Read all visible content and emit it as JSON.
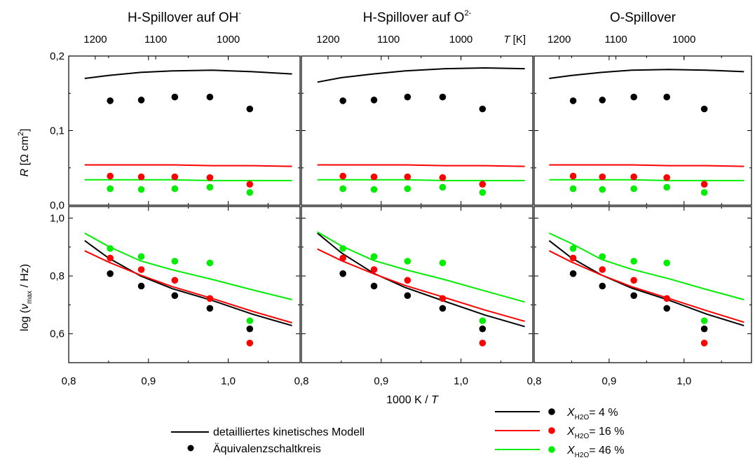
{
  "chart_data": [
    {
      "panel": "H-Spillover auf OH-",
      "title": "H-Spillover auf OH",
      "title_sup": "-",
      "type": "scatter",
      "top_axis": {
        "label_italic": "T",
        "label_unit": " [K]",
        "ticks": [
          1200,
          1100,
          1000
        ]
      },
      "x": {
        "label": "1000 K / T",
        "range": [
          0.8,
          1.09
        ],
        "ticks": [
          "0,8",
          "0,9",
          "1,0"
        ]
      },
      "R": {
        "ylabel": "R [Ω cm²]",
        "range": [
          0,
          0.2
        ],
        "ticks": [
          "0,0",
          "0,1",
          "0,2"
        ],
        "model_x": [
          0.82,
          0.85,
          0.89,
          0.93,
          0.98,
          1.03,
          1.08
        ],
        "model": {
          "4": [
            0.17,
            0.174,
            0.178,
            0.18,
            0.181,
            0.179,
            0.176
          ],
          "16": [
            0.054,
            0.054,
            0.054,
            0.054,
            0.053,
            0.053,
            0.052
          ],
          "46": [
            0.034,
            0.034,
            0.034,
            0.034,
            0.033,
            0.033,
            0.033
          ]
        },
        "points_x": [
          0.852,
          0.891,
          0.933,
          0.977,
          1.027
        ],
        "points": {
          "4": [
            0.14,
            0.141,
            0.145,
            0.145,
            0.129
          ],
          "16": [
            0.039,
            0.038,
            0.038,
            0.037,
            0.028
          ],
          "46": [
            0.022,
            0.021,
            0.022,
            0.024,
            0.017
          ]
        }
      },
      "nu": {
        "ylabel": "log (ν max / Hz)",
        "range": [
          0.5,
          1.04
        ],
        "ticks": [
          "0,6",
          "0,8",
          "1,0"
        ],
        "model_x": [
          0.82,
          0.85,
          0.89,
          0.93,
          0.98,
          1.03,
          1.08
        ],
        "model": {
          "4": [
            0.922,
            0.862,
            0.8,
            0.756,
            0.715,
            0.668,
            0.628
          ],
          "16": [
            0.887,
            0.848,
            0.803,
            0.763,
            0.722,
            0.678,
            0.638
          ],
          "46": [
            0.948,
            0.902,
            0.852,
            0.821,
            0.788,
            0.752,
            0.718
          ]
        },
        "points_x": [
          0.852,
          0.891,
          0.933,
          0.977,
          1.027
        ],
        "points": {
          "4": [
            0.808,
            0.765,
            0.732,
            0.688,
            0.617
          ],
          "16": [
            0.862,
            0.822,
            0.785,
            0.722,
            0.568
          ],
          "46": [
            0.895,
            0.867,
            0.851,
            0.845,
            0.645
          ]
        }
      }
    },
    {
      "panel": "H-Spillover auf O2-",
      "title": "H-Spillover auf O",
      "title_sup": "2-",
      "type": "scatter",
      "top_axis": {
        "label_italic": "T",
        "label_unit": " [K]",
        "ticks": [
          1200,
          1100,
          1000
        ]
      },
      "x": {
        "label": "1000 K / T",
        "range": [
          0.8,
          1.09
        ],
        "ticks": [
          "0,8",
          "0,9",
          "1,0"
        ]
      },
      "R": {
        "range": [
          0,
          0.2
        ],
        "model_x": [
          0.82,
          0.85,
          0.89,
          0.93,
          0.98,
          1.03,
          1.08
        ],
        "model": {
          "4": [
            0.165,
            0.171,
            0.176,
            0.18,
            0.183,
            0.184,
            0.183
          ],
          "16": [
            0.054,
            0.054,
            0.054,
            0.054,
            0.053,
            0.053,
            0.052
          ],
          "46": [
            0.034,
            0.034,
            0.034,
            0.034,
            0.033,
            0.033,
            0.033
          ]
        },
        "points_x": [
          0.852,
          0.891,
          0.933,
          0.977,
          1.027
        ],
        "points": {
          "4": [
            0.14,
            0.141,
            0.145,
            0.145,
            0.129
          ],
          "16": [
            0.039,
            0.038,
            0.038,
            0.037,
            0.028
          ],
          "46": [
            0.022,
            0.021,
            0.022,
            0.024,
            0.017
          ]
        }
      },
      "nu": {
        "range": [
          0.5,
          1.04
        ],
        "model_x": [
          0.82,
          0.85,
          0.89,
          0.93,
          0.98,
          1.03,
          1.08
        ],
        "model": {
          "4": [
            0.948,
            0.88,
            0.81,
            0.76,
            0.712,
            0.665,
            0.625
          ],
          "16": [
            0.893,
            0.853,
            0.808,
            0.767,
            0.725,
            0.682,
            0.643
          ],
          "46": [
            0.952,
            0.904,
            0.854,
            0.822,
            0.787,
            0.748,
            0.71
          ]
        },
        "points_x": [
          0.852,
          0.891,
          0.933,
          0.977,
          1.027
        ],
        "points": {
          "4": [
            0.808,
            0.765,
            0.732,
            0.688,
            0.617
          ],
          "16": [
            0.862,
            0.822,
            0.785,
            0.722,
            0.568
          ],
          "46": [
            0.895,
            0.867,
            0.851,
            0.845,
            0.645
          ]
        }
      }
    },
    {
      "panel": "O-Spillover",
      "title": "O-Spillover",
      "title_sup": "",
      "type": "scatter",
      "top_axis": {
        "label_italic": "T",
        "label_unit": " [K]",
        "ticks": [
          1200,
          1100,
          1000
        ]
      },
      "x": {
        "label": "1000 K / T",
        "range": [
          0.8,
          1.09
        ],
        "ticks": [
          "0,8",
          "0,9",
          "1,0"
        ]
      },
      "R": {
        "range": [
          0,
          0.2
        ],
        "model_x": [
          0.82,
          0.85,
          0.89,
          0.93,
          0.98,
          1.03,
          1.08
        ],
        "model": {
          "4": [
            0.17,
            0.174,
            0.178,
            0.181,
            0.182,
            0.181,
            0.179
          ],
          "16": [
            0.054,
            0.054,
            0.054,
            0.054,
            0.053,
            0.053,
            0.052
          ],
          "46": [
            0.034,
            0.034,
            0.034,
            0.034,
            0.033,
            0.033,
            0.033
          ]
        },
        "points_x": [
          0.852,
          0.891,
          0.933,
          0.977,
          1.027
        ],
        "points": {
          "4": [
            0.14,
            0.141,
            0.145,
            0.145,
            0.129
          ],
          "16": [
            0.039,
            0.038,
            0.038,
            0.037,
            0.028
          ],
          "46": [
            0.022,
            0.021,
            0.022,
            0.024,
            0.017
          ]
        }
      },
      "nu": {
        "range": [
          0.5,
          1.04
        ],
        "model_x": [
          0.82,
          0.85,
          0.89,
          0.93,
          0.98,
          1.03,
          1.08
        ],
        "model": {
          "4": [
            0.922,
            0.862,
            0.803,
            0.758,
            0.716,
            0.668,
            0.628
          ],
          "16": [
            0.887,
            0.848,
            0.803,
            0.763,
            0.722,
            0.68,
            0.64
          ],
          "46": [
            0.948,
            0.912,
            0.857,
            0.823,
            0.79,
            0.753,
            0.718
          ]
        },
        "points_x": [
          0.852,
          0.891,
          0.933,
          0.977,
          1.027
        ],
        "points": {
          "4": [
            0.808,
            0.765,
            0.732,
            0.688,
            0.617
          ],
          "16": [
            0.862,
            0.822,
            0.785,
            0.722,
            0.568
          ],
          "46": [
            0.895,
            0.867,
            0.851,
            0.845,
            0.645
          ]
        }
      }
    }
  ],
  "axis_labels": {
    "x_bottom_prefix": "1000 K / ",
    "x_bottom_italic": "T",
    "y_top_italic": "R",
    "y_top_unit_pre": " [Ω cm",
    "y_top_unit_sup": "2",
    "y_top_unit_post": "]",
    "y_bottom_pre": "log (",
    "y_bottom_nu": "ν",
    "y_bottom_sub": "max",
    "y_bottom_post": " / Hz)"
  },
  "legend": {
    "model_label": "detailliertes kinetisches Modell",
    "points_label": "Äquivalenzschaltkreis",
    "series": [
      {
        "key": "4",
        "var": "X",
        "sub": "H2O",
        "text": "= 4 %",
        "color": "#000000"
      },
      {
        "key": "16",
        "var": "X",
        "sub": "H2O",
        "text": "= 16 %",
        "color": "#ff0000"
      },
      {
        "key": "46",
        "var": "X",
        "sub": "H2O",
        "text": "= 46 %",
        "color": "#00ee00"
      }
    ]
  },
  "colors": {
    "4": "#000000",
    "16": "#ff0000",
    "46": "#00ee00"
  }
}
